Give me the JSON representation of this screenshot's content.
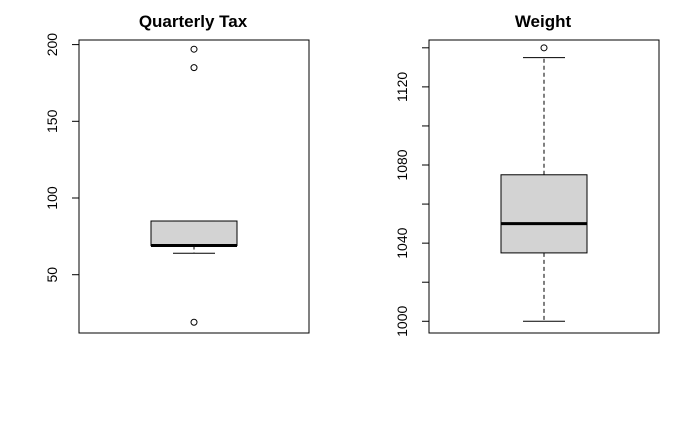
{
  "chart_data": [
    {
      "type": "box",
      "title": "Quarterly Tax",
      "xlabel": "",
      "ylabel": "",
      "ylim": [
        12,
        203
      ],
      "yticks": [
        50,
        100,
        150,
        200
      ],
      "ytick_labels": [
        "50",
        "100",
        "150",
        "200"
      ],
      "box": {
        "whisker_low": 64,
        "q1": 69,
        "median": 69,
        "q3": 85,
        "whisker_high": 85
      },
      "outliers": [
        19,
        185,
        197
      ],
      "box_fill": "#d3d3d3"
    },
    {
      "type": "box",
      "title": "Weight",
      "xlabel": "",
      "ylabel": "",
      "ylim": [
        994,
        1144
      ],
      "yticks": [
        1000,
        1020,
        1040,
        1060,
        1080,
        1100,
        1120,
        1140
      ],
      "ytick_labels": [
        "1000",
        "",
        "1040",
        "",
        "1080",
        "",
        "1120",
        ""
      ],
      "box": {
        "whisker_low": 1000,
        "q1": 1035,
        "median": 1050,
        "q3": 1075,
        "whisker_high": 1135
      },
      "outliers": [
        1140
      ],
      "box_fill": "#d3d3d3"
    }
  ]
}
